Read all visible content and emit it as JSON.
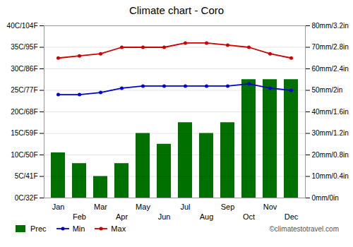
{
  "chart_data": {
    "type": "bar",
    "title": "Climate chart - Coro",
    "categories": [
      "Jan",
      "Feb",
      "Mar",
      "Apr",
      "May",
      "Jun",
      "Jul",
      "Aug",
      "Sep",
      "Oct",
      "Nov",
      "Dec"
    ],
    "series": [
      {
        "name": "Prec",
        "type": "bar",
        "axis": "y2",
        "color": "#007000",
        "values": [
          21,
          16,
          10,
          16,
          30,
          25,
          35,
          30,
          35,
          55,
          55,
          55
        ]
      },
      {
        "name": "Min",
        "type": "line",
        "marker": "circle",
        "color": "#0000cc",
        "values": [
          24,
          24,
          24.5,
          25.5,
          26,
          26,
          26,
          26,
          26,
          26.5,
          25.5,
          25
        ]
      },
      {
        "name": "Max",
        "type": "line",
        "marker": "circle",
        "color": "#cc0000",
        "values": [
          32.5,
          33,
          33.5,
          35,
          35,
          35,
          36,
          36,
          35.5,
          35,
          33.5,
          32.5
        ]
      }
    ],
    "ylim": [
      0,
      40
    ],
    "yticks": [
      {
        "value": 0,
        "label": "0C/32F"
      },
      {
        "value": 5,
        "label": "5C/41F"
      },
      {
        "value": 10,
        "label": "10C/50F"
      },
      {
        "value": 15,
        "label": "15C/59F"
      },
      {
        "value": 20,
        "label": "20C/68F"
      },
      {
        "value": 25,
        "label": "25C/77F"
      },
      {
        "value": 30,
        "label": "30C/86F"
      },
      {
        "value": 35,
        "label": "35C/95F"
      },
      {
        "value": 40,
        "label": "40C/104F"
      }
    ],
    "y2lim": [
      0,
      80
    ],
    "y2ticks": [
      {
        "value": 0,
        "label": "0mm/0in"
      },
      {
        "value": 10,
        "label": "10mm/0.4in"
      },
      {
        "value": 20,
        "label": "20mm/0.8in"
      },
      {
        "value": 30,
        "label": "30mm/1.2in"
      },
      {
        "value": 40,
        "label": "40mm/1.6in"
      },
      {
        "value": 50,
        "label": "50mm/2in"
      },
      {
        "value": 60,
        "label": "60mm/2.4in"
      },
      {
        "value": 70,
        "label": "70mm/2.8in"
      },
      {
        "value": 80,
        "label": "80mm/3.2in"
      }
    ],
    "grid": true,
    "legend": "bottom",
    "annotations": [
      "©climatestotravel.com"
    ]
  }
}
